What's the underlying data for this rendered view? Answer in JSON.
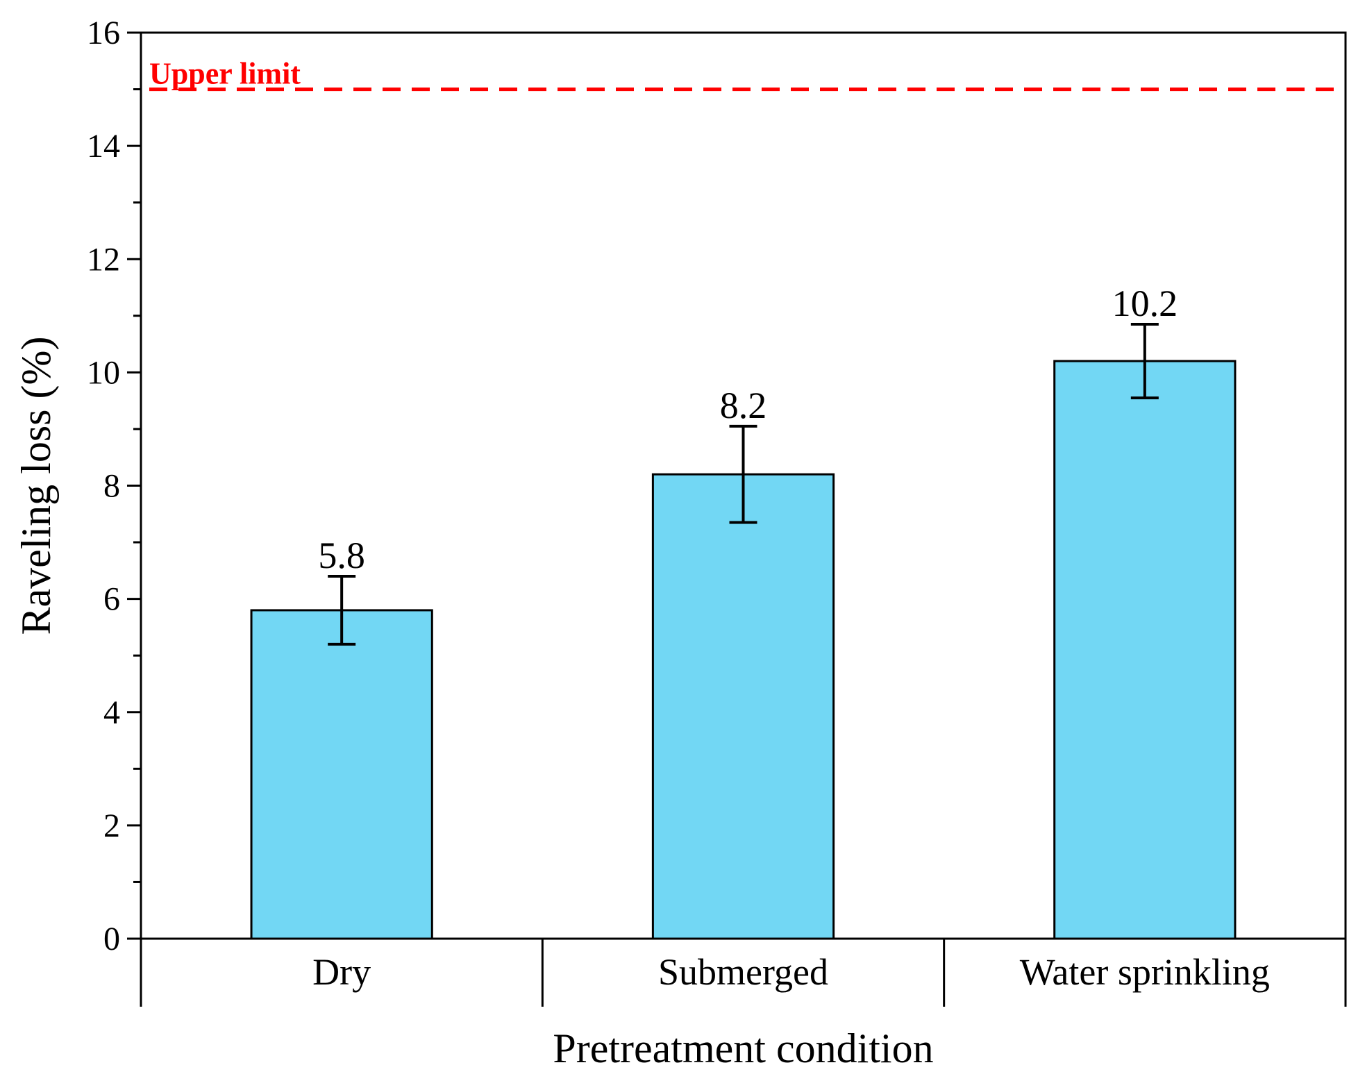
{
  "chart_data": {
    "type": "bar",
    "title": "",
    "xlabel": "Pretreatment condition",
    "ylabel": "Raveling loss (%)",
    "ylim": [
      0,
      16
    ],
    "yticks": [
      0,
      2,
      4,
      6,
      8,
      10,
      12,
      14,
      16
    ],
    "categories": [
      "Dry",
      "Submerged",
      "Water sprinkling"
    ],
    "values": [
      5.8,
      8.2,
      10.2
    ],
    "value_labels": [
      "5.8",
      "8.2",
      "10.2"
    ],
    "errors": [
      0.6,
      0.85,
      0.65
    ],
    "bar_color": "#72d7f4",
    "reference_line": {
      "label": "Upper limit",
      "value": 15,
      "color": "#ff0000",
      "style": "dashed"
    },
    "grid": false
  }
}
